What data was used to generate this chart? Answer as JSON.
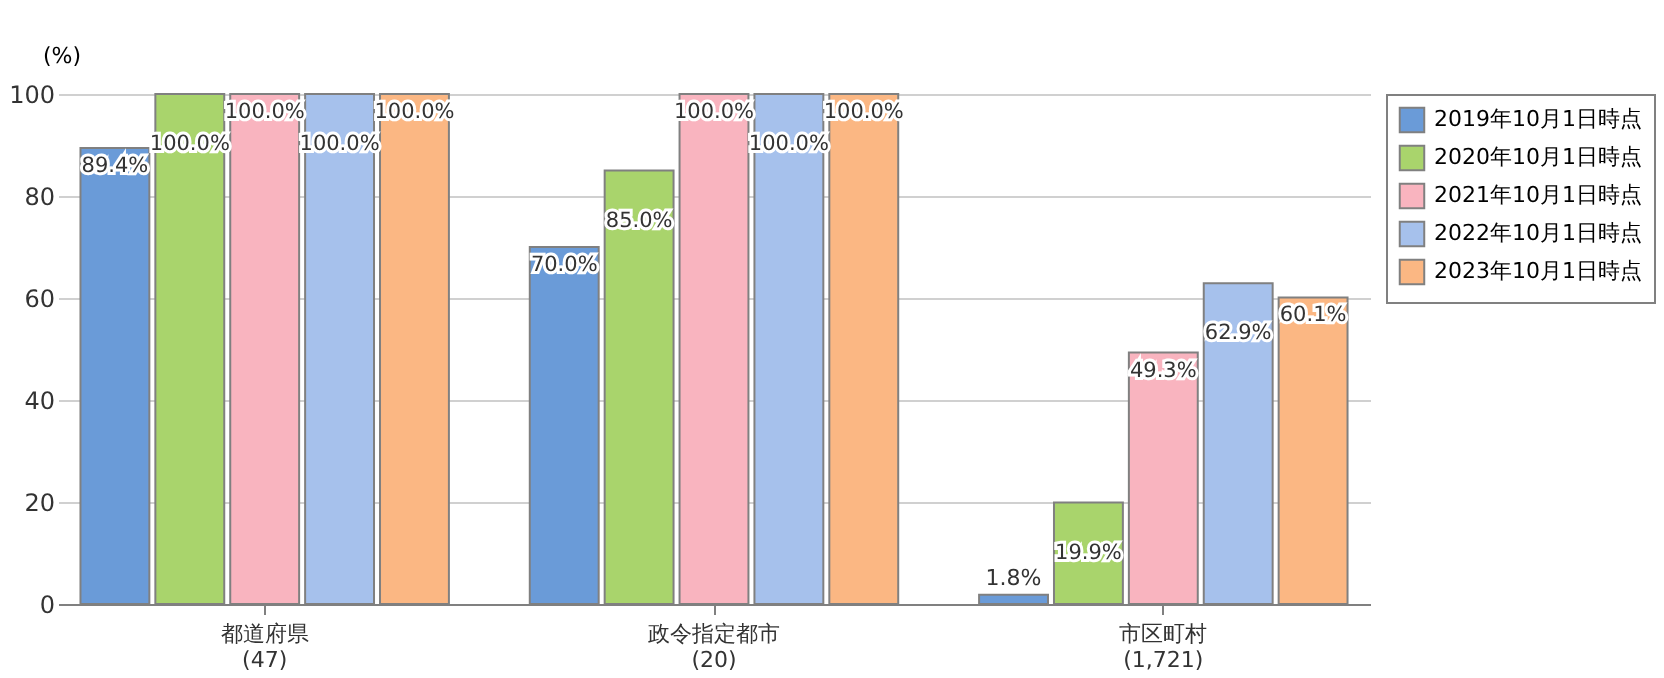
{
  "chart_data": {
    "type": "bar",
    "ylabel": "(%)",
    "categories": [
      "都道府県\n(47)",
      "政令指定都市\n(20)",
      "市区町村\n(1,721)"
    ],
    "series": [
      {
        "name": "2019年10月1日時点",
        "color": "#6a9bd8",
        "values": [
          89.4,
          70.0,
          1.8
        ],
        "value_labels": [
          "89.4%",
          "70.0%",
          "1.8%"
        ]
      },
      {
        "name": "2020年10月1日時点",
        "color": "#a9d46c",
        "values": [
          100.0,
          85.0,
          19.9
        ],
        "value_labels": [
          "100.0%",
          "85.0%",
          "19.9%"
        ]
      },
      {
        "name": "2021年10月1日時点",
        "color": "#f9b4bf",
        "values": [
          100.0,
          100.0,
          49.3
        ],
        "value_labels": [
          "100.0%",
          "100.0%",
          "49.3%"
        ]
      },
      {
        "name": "2022年10月1日時点",
        "color": "#a6c1ec",
        "values": [
          100.0,
          100.0,
          62.9
        ],
        "value_labels": [
          "100.0%",
          "100.0%",
          "62.9%"
        ]
      },
      {
        "name": "2023年10月1日時点",
        "color": "#fbb783",
        "values": [
          100.0,
          100.0,
          60.1
        ],
        "value_labels": [
          "100.0%",
          "100.0%",
          "60.1%"
        ]
      }
    ],
    "ylim": [
      0,
      100
    ],
    "yticks": [
      0,
      20,
      40,
      60,
      80,
      100
    ],
    "grid": "y",
    "legend": "right"
  }
}
